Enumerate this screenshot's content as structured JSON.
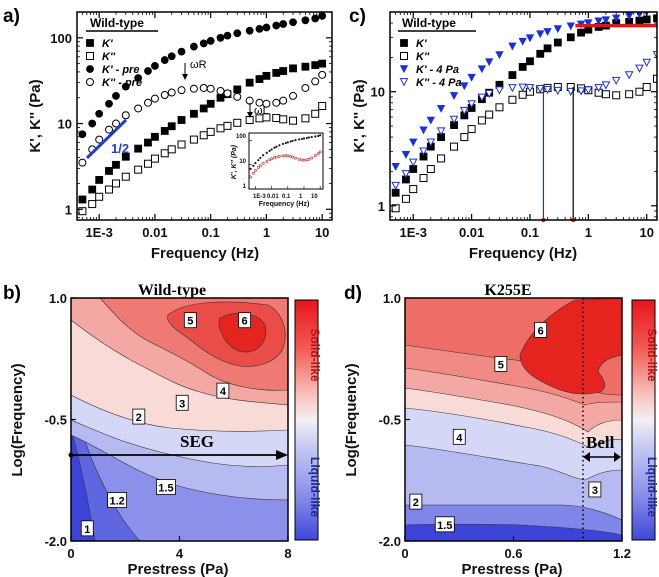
{
  "chart_data": [
    {
      "panel": "a)",
      "type": "scatter",
      "xlabel": "Frequency (Hz)",
      "ylabel": "K', K'' (Pa)",
      "xscale": "log",
      "yscale": "log",
      "xlim": [
        0.0004,
        15
      ],
      "ylim": [
        0.75,
        200
      ],
      "xticks": [
        {
          "v": 0.001,
          "label": "1E-3"
        },
        {
          "v": 0.01,
          "label": "0.01"
        },
        {
          "v": 0.1,
          "label": "0.1"
        },
        {
          "v": 1,
          "label": "1"
        },
        {
          "v": 10,
          "label": "10"
        }
      ],
      "yticks": [
        {
          "v": 1,
          "label": "1"
        },
        {
          "v": 10,
          "label": "10"
        },
        {
          "v": 100,
          "label": "100"
        }
      ],
      "legend_title": "Wild-type",
      "legend_placement": "top-left",
      "series": [
        {
          "name": "K'",
          "marker": "square-filled",
          "color": "#000000",
          "x": [
            0.0005,
            0.00075,
            0.001,
            0.0015,
            0.002,
            0.003,
            0.005,
            0.0075,
            0.01,
            0.015,
            0.02,
            0.03,
            0.05,
            0.075,
            0.1,
            0.15,
            0.2,
            0.3,
            0.5,
            0.75,
            1,
            1.5,
            2,
            3,
            5,
            7.5,
            10
          ],
          "y": [
            1.3,
            1.7,
            2.2,
            2.8,
            3.3,
            4.1,
            5.1,
            6.0,
            7.0,
            8.2,
            9.3,
            11,
            13,
            15,
            17,
            20,
            22,
            25,
            30,
            33,
            36,
            39,
            41,
            44,
            46,
            48,
            50
          ]
        },
        {
          "name": "K''",
          "marker": "square-open",
          "color": "#000000",
          "x": [
            0.0005,
            0.00075,
            0.001,
            0.0015,
            0.002,
            0.003,
            0.005,
            0.0075,
            0.01,
            0.015,
            0.02,
            0.03,
            0.05,
            0.075,
            0.1,
            0.15,
            0.2,
            0.3,
            0.5,
            0.75,
            1,
            1.5,
            2,
            3,
            5,
            7.5,
            10
          ],
          "y": [
            0.95,
            1.15,
            1.4,
            1.7,
            2.0,
            2.4,
            2.9,
            3.4,
            3.9,
            4.5,
            5.0,
            5.7,
            6.5,
            7.3,
            8.0,
            8.8,
            9.4,
            10.2,
            11,
            11.5,
            11.8,
            11.6,
            11.2,
            10.8,
            11.5,
            13,
            16
          ]
        },
        {
          "name": "K' - pre",
          "marker": "circle-filled",
          "color": "#000000",
          "x": [
            0.0005,
            0.00075,
            0.001,
            0.0015,
            0.002,
            0.003,
            0.005,
            0.0075,
            0.01,
            0.015,
            0.02,
            0.03,
            0.05,
            0.075,
            0.1,
            0.15,
            0.2,
            0.3,
            0.5,
            0.75,
            1,
            1.5,
            2,
            3,
            5,
            7.5,
            10
          ],
          "y": [
            7.5,
            10,
            13,
            17,
            21,
            27,
            34,
            41,
            47,
            55,
            61,
            69,
            79,
            86,
            92,
            100,
            106,
            113,
            121,
            127,
            132,
            139,
            145,
            152,
            160,
            168,
            180
          ]
        },
        {
          "name": "K'' - pre",
          "marker": "circle-open",
          "color": "#000000",
          "x": [
            0.0005,
            0.00075,
            0.001,
            0.0015,
            0.002,
            0.003,
            0.005,
            0.0075,
            0.01,
            0.015,
            0.02,
            0.03,
            0.05,
            0.075,
            0.1,
            0.15,
            0.2,
            0.3,
            0.5,
            0.75,
            1,
            1.5,
            2,
            3,
            5,
            7.5,
            10
          ],
          "y": [
            3.5,
            5,
            6.5,
            8.5,
            10,
            12.5,
            15,
            17.5,
            19.5,
            21.5,
            23,
            24.5,
            25.5,
            26,
            25.5,
            24,
            22.5,
            20.5,
            18.5,
            17.5,
            17,
            17.5,
            18.5,
            21,
            26,
            31,
            37
          ]
        }
      ],
      "annotations": [
        {
          "text": "1/2",
          "type": "slope-line",
          "color": "#1f3fd0"
        },
        {
          "text": "ωR",
          "type": "arrow-down",
          "x": 0.045,
          "y": 27
        },
        {
          "text": "ωL",
          "type": "arrow-down",
          "x": 0.5,
          "y": 12.5
        }
      ],
      "inset": {
        "xlabel": "Frequency (Hz)",
        "ylabel": "K', K'' (Pa)",
        "xticks": [
          "1E-3",
          "0.01",
          "0.1",
          "1",
          "10"
        ],
        "yticks": [
          "1",
          "10",
          "100"
        ]
      }
    },
    {
      "panel": "c)",
      "type": "scatter",
      "xlabel": "Frequency (Hz)",
      "ylabel": "K', K'' (Pa)",
      "xscale": "log",
      "yscale": "log",
      "xlim": [
        0.0004,
        15
      ],
      "ylim": [
        0.75,
        50
      ],
      "xticks": [
        {
          "v": 0.001,
          "label": "1E-3"
        },
        {
          "v": 0.01,
          "label": "0.01"
        },
        {
          "v": 0.1,
          "label": "0.1"
        },
        {
          "v": 1,
          "label": "1"
        },
        {
          "v": 10,
          "label": "10"
        }
      ],
      "yticks": [
        {
          "v": 1,
          "label": "1"
        },
        {
          "v": 10,
          "label": "10"
        }
      ],
      "legend_title": "Wild-type",
      "legend_placement": "top-left",
      "series": [
        {
          "name": "K'",
          "marker": "square-filled",
          "color": "#000000",
          "x": [
            0.0005,
            0.00075,
            0.001,
            0.0015,
            0.002,
            0.003,
            0.005,
            0.0075,
            0.01,
            0.015,
            0.02,
            0.03,
            0.05,
            0.075,
            0.1,
            0.15,
            0.2,
            0.3,
            0.5,
            0.75,
            1,
            1.5,
            2,
            3,
            5,
            7.5,
            10,
            15
          ],
          "y": [
            1.3,
            1.7,
            2.1,
            2.7,
            3.3,
            4.0,
            5.1,
            6.2,
            7.2,
            8.6,
            9.8,
            11.5,
            14,
            16.5,
            18.5,
            21.5,
            24,
            27,
            30,
            33,
            35,
            37,
            38,
            40,
            41,
            42,
            43,
            44
          ]
        },
        {
          "name": "K''",
          "marker": "square-open",
          "color": "#000000",
          "x": [
            0.0005,
            0.00075,
            0.001,
            0.0015,
            0.002,
            0.003,
            0.005,
            0.0075,
            0.01,
            0.015,
            0.02,
            0.03,
            0.05,
            0.075,
            0.1,
            0.15,
            0.2,
            0.3,
            0.5,
            0.75,
            1,
            1.5,
            2,
            3,
            5,
            7.5,
            10,
            15
          ],
          "y": [
            0.95,
            1.15,
            1.4,
            1.75,
            2.1,
            2.6,
            3.3,
            4.0,
            4.7,
            5.6,
            6.3,
            7.3,
            8.5,
            9.4,
            10,
            10.5,
            10.8,
            11,
            11,
            10.7,
            10.3,
            9.8,
            9.5,
            9.3,
            9.5,
            10,
            11,
            13
          ]
        },
        {
          "name": "K' - 4 Pa",
          "marker": "triangle-down-filled",
          "color": "#1a2fe0",
          "x": [
            0.0005,
            0.00075,
            0.001,
            0.0015,
            0.002,
            0.003,
            0.005,
            0.0075,
            0.01,
            0.015,
            0.02,
            0.03,
            0.05,
            0.075,
            0.1,
            0.15,
            0.2,
            0.3,
            0.5,
            0.75,
            1,
            1.5,
            2,
            3,
            5,
            7.5,
            10,
            15
          ],
          "y": [
            2.2,
            2.8,
            3.6,
            4.6,
            5.6,
            7.1,
            9.2,
            11.2,
            13.3,
            15.8,
            18.2,
            21,
            25,
            27.5,
            29.5,
            32,
            33.5,
            35.5,
            37.5,
            39,
            40,
            41.5,
            42.5,
            44,
            46,
            48,
            50,
            52
          ]
        },
        {
          "name": "K'' - 4 Pa",
          "marker": "triangle-down-open",
          "color": "#1a2fe0",
          "x": [
            0.0005,
            0.00075,
            0.001,
            0.0015,
            0.002,
            0.003,
            0.005,
            0.0075,
            0.01,
            0.015,
            0.02,
            0.03,
            0.05,
            0.075,
            0.1,
            0.15,
            0.2,
            0.3,
            0.5,
            0.75,
            1,
            1.5,
            2,
            3,
            5,
            7.5,
            10,
            15
          ],
          "y": [
            1.5,
            1.9,
            2.4,
            3.0,
            3.6,
            4.5,
            5.7,
            6.8,
            7.8,
            8.9,
            9.6,
            10.3,
            10.8,
            10.9,
            10.8,
            10.6,
            10.4,
            10.2,
            10.0,
            10.1,
            10.3,
            10.8,
            11.4,
            12.5,
            14,
            16,
            18,
            21
          ]
        }
      ],
      "annotations": [
        {
          "type": "plateau-line",
          "color": "#e01515",
          "x": [
            0.6,
            15
          ],
          "y": 38
        },
        {
          "type": "crossover-line",
          "color": "#1a2fe0",
          "x": 0.17
        },
        {
          "type": "crossover-line",
          "color": "#000000",
          "x": 0.55
        }
      ]
    },
    {
      "panel": "b)",
      "type": "heatmap",
      "title": "Wild-type",
      "xlabel": "Prestress (Pa)",
      "ylabel": "Log(Frequency)",
      "xlim": [
        0,
        8
      ],
      "ylim": [
        -2.0,
        1.0
      ],
      "xticks": [
        {
          "v": 0,
          "label": "0"
        },
        {
          "v": 4,
          "label": "4"
        },
        {
          "v": 8,
          "label": "8"
        }
      ],
      "yticks": [
        {
          "v": 1.0,
          "label": "1.0"
        },
        {
          "v": -0.5,
          "label": "-0.5"
        },
        {
          "v": -2.0,
          "label": "-2.0"
        }
      ],
      "contour_labels": [
        {
          "text": "6",
          "x": 6.4,
          "y": 0.72
        },
        {
          "text": "5",
          "x": 4.4,
          "y": 0.72
        },
        {
          "text": "4",
          "x": 5.6,
          "y": -0.15
        },
        {
          "text": "3",
          "x": 4.1,
          "y": -0.3
        },
        {
          "text": "2",
          "x": 2.5,
          "y": -0.47
        },
        {
          "text": "1.5",
          "x": 3.5,
          "y": -1.34
        },
        {
          "text": "1.2",
          "x": 1.7,
          "y": -1.5
        },
        {
          "text": "1",
          "x": 0.6,
          "y": -1.85
        }
      ],
      "annotation_text": "SEG",
      "colorbar": {
        "top": "Solid-like",
        "bottom": "Liquid-like"
      }
    },
    {
      "panel": "d)",
      "type": "heatmap",
      "title": "K255E",
      "xlabel": "Prestress (Pa)",
      "ylabel": "Log(Frequency)",
      "xlim": [
        0,
        1.2
      ],
      "ylim": [
        -2.0,
        1.0
      ],
      "xticks": [
        {
          "v": 0,
          "label": "0"
        },
        {
          "v": 0.6,
          "label": "0.6"
        },
        {
          "v": 1.2,
          "label": "1.2"
        }
      ],
      "yticks": [
        {
          "v": 1.0,
          "label": "1.0"
        },
        {
          "v": -0.5,
          "label": "-0.5"
        },
        {
          "v": -2.0,
          "label": "-2.0"
        }
      ],
      "contour_labels": [
        {
          "text": "6",
          "x": 0.75,
          "y": 0.6
        },
        {
          "text": "5",
          "x": 0.53,
          "y": 0.18
        },
        {
          "text": "4",
          "x": 0.3,
          "y": -0.72
        },
        {
          "text": "3",
          "x": 1.05,
          "y": -1.37
        },
        {
          "text": "2",
          "x": 0.06,
          "y": -1.52
        },
        {
          "text": "1.5",
          "x": 0.22,
          "y": -1.8
        }
      ],
      "annotation_text": "Bell",
      "colorbar": {
        "top": "Solid-like",
        "bottom": "Liquid-like"
      }
    }
  ]
}
